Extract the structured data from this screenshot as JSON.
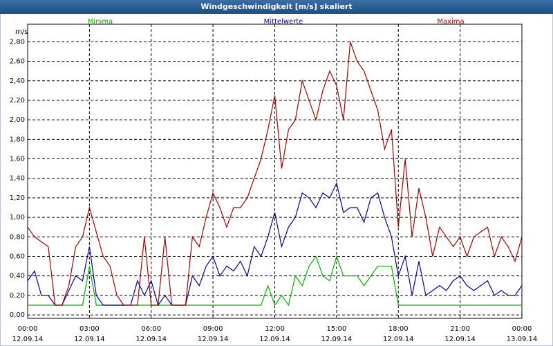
{
  "chart_data": {
    "type": "line",
    "title": "Windgeschwindigkeit [m/s] skaliert",
    "y_label": "m/s",
    "x": [
      0,
      20,
      40,
      60,
      80,
      100,
      120,
      140,
      160,
      180,
      200,
      220,
      240,
      260,
      280,
      300,
      320,
      340,
      360,
      380,
      400,
      420,
      440,
      460,
      480,
      500,
      520,
      540,
      560,
      580,
      600,
      620,
      640,
      660,
      680,
      700,
      720,
      740,
      760,
      780,
      800,
      820,
      840,
      860,
      880,
      900,
      920,
      940,
      960,
      980,
      1000,
      1020,
      1040,
      1060,
      1080,
      1100,
      1120,
      1140,
      1160,
      1180,
      1200,
      1220,
      1240,
      1260,
      1280,
      1300,
      1320,
      1340,
      1360,
      1380,
      1400,
      1420,
      1440
    ],
    "xlim": [
      0,
      1440
    ],
    "xticks": [
      {
        "value": 0,
        "label": "00:00"
      },
      {
        "value": 180,
        "label": "03:00"
      },
      {
        "value": 360,
        "label": "06:00"
      },
      {
        "value": 540,
        "label": "09:00"
      },
      {
        "value": 720,
        "label": "12:00"
      },
      {
        "value": 900,
        "label": "15:00"
      },
      {
        "value": 1080,
        "label": "18:00"
      },
      {
        "value": 1260,
        "label": "21:00"
      },
      {
        "value": 1440,
        "label": "00:00"
      }
    ],
    "xtick_dates": [
      "12.09.14",
      "12.09.14",
      "12.09.14",
      "12.09.14",
      "12.09.14",
      "12.09.14",
      "12.09.14",
      "12.09.14",
      "13.09.14"
    ],
    "ylim": [
      -0.035,
      2.98
    ],
    "yticks": [
      {
        "value": 0,
        "label": "0,00"
      },
      {
        "value": 0.2,
        "label": "0,20"
      },
      {
        "value": 0.4,
        "label": "0,40"
      },
      {
        "value": 0.6,
        "label": "0,60"
      },
      {
        "value": 0.8,
        "label": "0,80"
      },
      {
        "value": 1.0,
        "label": "1,00"
      },
      {
        "value": 1.2,
        "label": "1,20"
      },
      {
        "value": 1.4,
        "label": "1,40"
      },
      {
        "value": 1.6,
        "label": "1,60"
      },
      {
        "value": 1.8,
        "label": "1,80"
      },
      {
        "value": 2.0,
        "label": "2,00"
      },
      {
        "value": 2.2,
        "label": "2,20"
      },
      {
        "value": 2.4,
        "label": "2,40"
      },
      {
        "value": 2.6,
        "label": "2,60"
      },
      {
        "value": 2.8,
        "label": "2,80"
      }
    ],
    "grid": true,
    "series": [
      {
        "name": "Minima",
        "color": "#00b000",
        "values": [
          0.1,
          0.1,
          0.1,
          0.1,
          0.1,
          0.1,
          0.1,
          0.1,
          0.1,
          0.5,
          0.1,
          0.1,
          0.1,
          0.1,
          0.1,
          0.1,
          0.1,
          0.1,
          0.1,
          0.1,
          0.1,
          0.1,
          0.1,
          0.1,
          0.1,
          0.1,
          0.1,
          0.1,
          0.1,
          0.1,
          0.1,
          0.1,
          0.1,
          0.1,
          0.1,
          0.3,
          0.1,
          0.2,
          0.1,
          0.4,
          0.3,
          0.5,
          0.6,
          0.4,
          0.35,
          0.6,
          0.4,
          0.4,
          0.4,
          0.3,
          0.4,
          0.5,
          0.5,
          0.5,
          0.1,
          0.1,
          0.1,
          0.1,
          0.1,
          0.1,
          0.1,
          0.1,
          0.1,
          0.1,
          0.1,
          0.1,
          0.1,
          0.1,
          0.1,
          0.1,
          0.1,
          0.1,
          0.1
        ]
      },
      {
        "name": "Mittelwerte",
        "color": "#0000a0",
        "values": [
          0.35,
          0.45,
          0.2,
          0.2,
          0.1,
          0.1,
          0.25,
          0.4,
          0.35,
          0.7,
          0.2,
          0.1,
          0.1,
          0.1,
          0.1,
          0.1,
          0.35,
          0.2,
          0.35,
          0.1,
          0.2,
          0.1,
          0.1,
          0.1,
          0.4,
          0.3,
          0.5,
          0.6,
          0.4,
          0.5,
          0.45,
          0.55,
          0.4,
          0.7,
          0.6,
          0.8,
          1.05,
          0.7,
          0.9,
          1.0,
          1.25,
          1.2,
          1.1,
          1.25,
          1.2,
          1.35,
          1.05,
          1.1,
          1.1,
          0.95,
          1.2,
          1.25,
          1.0,
          0.8,
          0.4,
          0.6,
          0.2,
          0.55,
          0.2,
          0.25,
          0.3,
          0.25,
          0.35,
          0.4,
          0.3,
          0.25,
          0.3,
          0.35,
          0.2,
          0.25,
          0.2,
          0.2,
          0.3
        ]
      },
      {
        "name": "Maxima",
        "color": "#a00000",
        "values": [
          0.9,
          0.8,
          0.75,
          0.7,
          0.1,
          0.1,
          0.3,
          0.7,
          0.8,
          1.1,
          0.85,
          0.6,
          0.5,
          0.2,
          0.1,
          0.1,
          0.1,
          0.8,
          0.1,
          0.1,
          0.8,
          0.1,
          0.1,
          0.1,
          0.8,
          0.7,
          1.0,
          1.25,
          1.1,
          0.9,
          1.1,
          1.1,
          1.2,
          1.4,
          1.6,
          1.9,
          2.25,
          1.5,
          1.9,
          2.0,
          2.4,
          2.2,
          2.0,
          2.3,
          2.5,
          2.35,
          2.0,
          2.8,
          2.6,
          2.5,
          2.3,
          2.1,
          1.7,
          1.9,
          0.9,
          1.6,
          0.8,
          1.3,
          1.0,
          0.6,
          0.9,
          0.8,
          0.7,
          0.8,
          0.6,
          0.8,
          0.85,
          0.9,
          0.6,
          0.8,
          0.7,
          0.55,
          0.8
        ]
      }
    ]
  }
}
